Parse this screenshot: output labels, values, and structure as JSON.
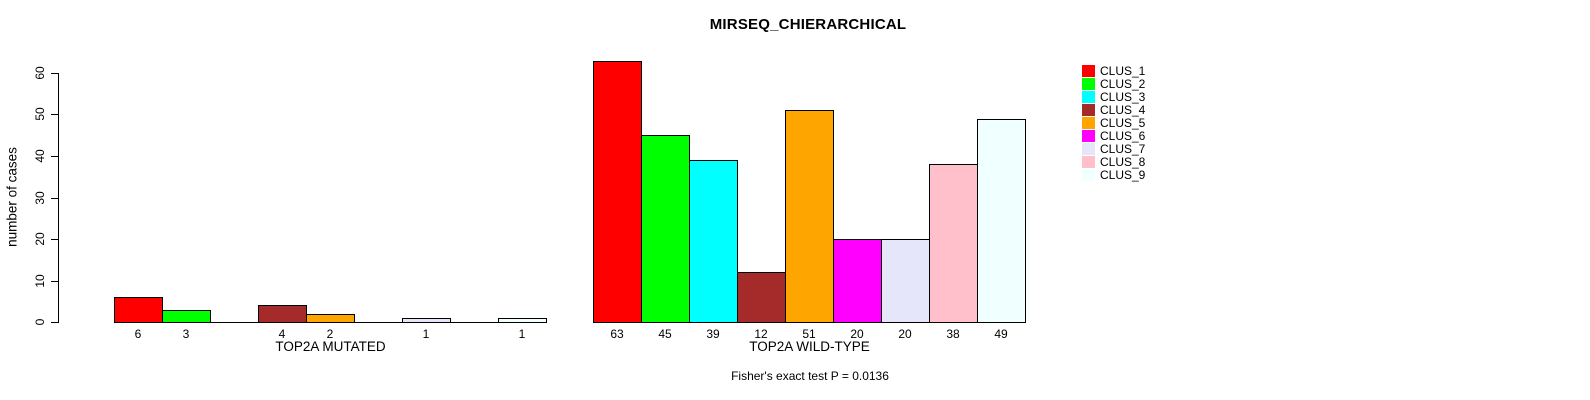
{
  "title": "MIRSEQ_CHIERARCHICAL",
  "chart_data": {
    "type": "bar",
    "title": "MIRSEQ_CHIERARCHICAL",
    "ylabel": "number of cases",
    "ylim": [
      0,
      63
    ],
    "yticks": [
      0,
      10,
      20,
      30,
      40,
      50,
      60
    ],
    "grid": false,
    "bar_border_color": "#000000",
    "legend_position": "top-right",
    "categories": [
      "CLUS_1",
      "CLUS_2",
      "CLUS_3",
      "CLUS_4",
      "CLUS_5",
      "CLUS_6",
      "CLUS_7",
      "CLUS_8",
      "CLUS_9"
    ],
    "colors": [
      "#FF0000",
      "#00FF00",
      "#00FFFF",
      "#A52A2A",
      "#FFA500",
      "#FF00FF",
      "#E6E6FA",
      "#FFC0CB",
      "#F0FFFF"
    ],
    "panels": [
      {
        "xlabel": "TOP2A MUTATED",
        "values": [
          6,
          3,
          0,
          4,
          2,
          0,
          1,
          0,
          1
        ]
      },
      {
        "xlabel": "TOP2A WILD-TYPE",
        "values": [
          63,
          45,
          39,
          12,
          51,
          20,
          20,
          38,
          49
        ]
      }
    ],
    "annotation": "Fisher's exact test P = 0.0136"
  }
}
